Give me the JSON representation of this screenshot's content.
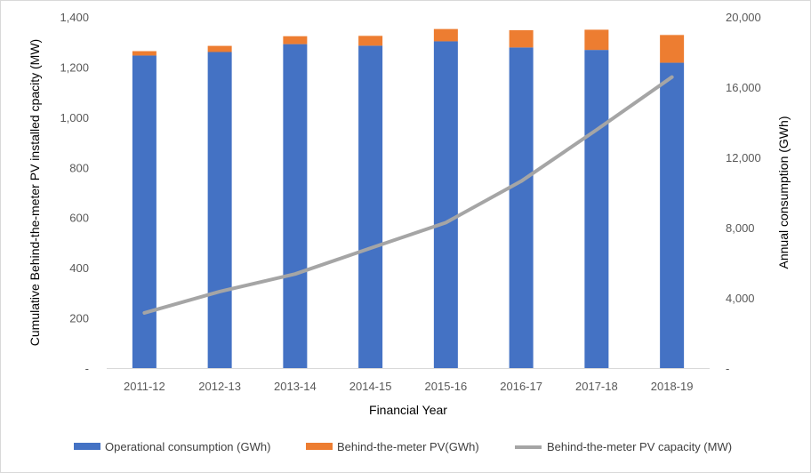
{
  "chart_data": {
    "type": "bar",
    "stacked": true,
    "categories": [
      "2011-12",
      "2012-13",
      "2013-14",
      "2014-15",
      "2015-16",
      "2016-17",
      "2017-18",
      "2018-19"
    ],
    "xlabel": "Financial Year",
    "ylabel_left": "Cumulative Behind-the-meter PV installed cpacity (MW)",
    "ylabel_right": "Annual consumption (GWh)",
    "ylim_left": [
      0,
      1400
    ],
    "ylim_right": [
      0,
      20000
    ],
    "yticks_left": [
      "-",
      "200",
      "400",
      "600",
      "800",
      "1,000",
      "1,200",
      "1,400"
    ],
    "yticks_right": [
      "-",
      "4,000",
      "8,000",
      "12,000",
      "16,000",
      "20,000"
    ],
    "grid": false,
    "legend_position": "bottom",
    "series": [
      {
        "name": "Operational consumption (GWh)",
        "type": "bar",
        "axis": "right",
        "color": "#4472c4",
        "values": [
          17800,
          18000,
          18450,
          18360,
          18610,
          18260,
          18120,
          17390
        ]
      },
      {
        "name": "Behind-the-meter PV(GWh)",
        "type": "bar",
        "axis": "right",
        "color": "#ed7d31",
        "values": [
          250,
          350,
          450,
          560,
          700,
          980,
          1150,
          1580
        ]
      },
      {
        "name": "Behind-the-meter PV capacity (MW)",
        "type": "line",
        "axis": "left",
        "color": "#a5a5a5",
        "values": [
          220,
          305,
          375,
          478,
          580,
          745,
          950,
          1160
        ]
      }
    ]
  }
}
